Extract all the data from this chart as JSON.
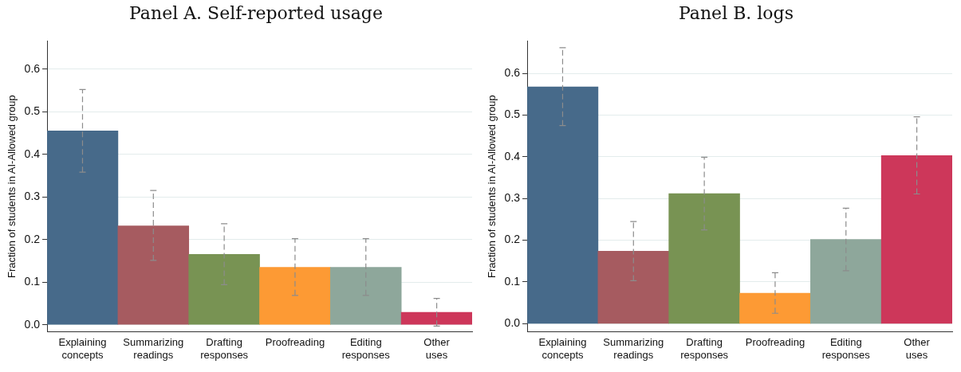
{
  "chart_data": [
    {
      "type": "bar",
      "title": "Panel A. Self-reported usage",
      "ylabel": "Fraction of students in AI-Allowed group",
      "categories": [
        "Explaining concepts",
        "Summarizing readings",
        "Drafting responses",
        "Proofreading",
        "Editing responses",
        "Other uses"
      ],
      "values": [
        0.455,
        0.232,
        0.165,
        0.135,
        0.135,
        0.029
      ],
      "colors": [
        "#476a8a",
        "#a65b60",
        "#789353",
        "#fd9a34",
        "#8ea79b",
        "#cd375a"
      ],
      "errors": [
        [
          0.358,
          0.552
        ],
        [
          0.151,
          0.315
        ],
        [
          0.094,
          0.237
        ],
        [
          0.069,
          0.202
        ],
        [
          0.069,
          0.202
        ],
        [
          -0.003,
          0.062
        ]
      ],
      "ylim": [
        -0.017,
        0.666
      ],
      "yticks": [
        {
          "value": 0,
          "label": "0.0"
        },
        0.1,
        0.2,
        0.3,
        0.4,
        0.5,
        0.6
      ],
      "grid": "y",
      "legend": false
    },
    {
      "type": "bar",
      "title": "Panel B. logs",
      "ylabel": "Fraction of students in AI-Allowed group",
      "categories": [
        "Explaining concepts",
        "Summarizing readings",
        "Drafting responses",
        "Proofreading",
        "Editing responses",
        "Other uses"
      ],
      "values": [
        0.568,
        0.174,
        0.312,
        0.073,
        0.202,
        0.403
      ],
      "colors": [
        "#476a8a",
        "#a65b60",
        "#789353",
        "#fd9a34",
        "#8ea79b",
        "#cd375a"
      ],
      "errors": [
        [
          0.475,
          0.662
        ],
        [
          0.103,
          0.245
        ],
        [
          0.225,
          0.399
        ],
        [
          0.025,
          0.122
        ],
        [
          0.127,
          0.277
        ],
        [
          0.311,
          0.496
        ]
      ],
      "ylim": [
        -0.02,
        0.678
      ],
      "yticks": [
        {
          "value": 0,
          "label": "0.0"
        },
        0.1,
        0.2,
        0.3,
        0.4,
        0.5,
        0.6
      ],
      "grid": "y",
      "legend": false
    }
  ]
}
